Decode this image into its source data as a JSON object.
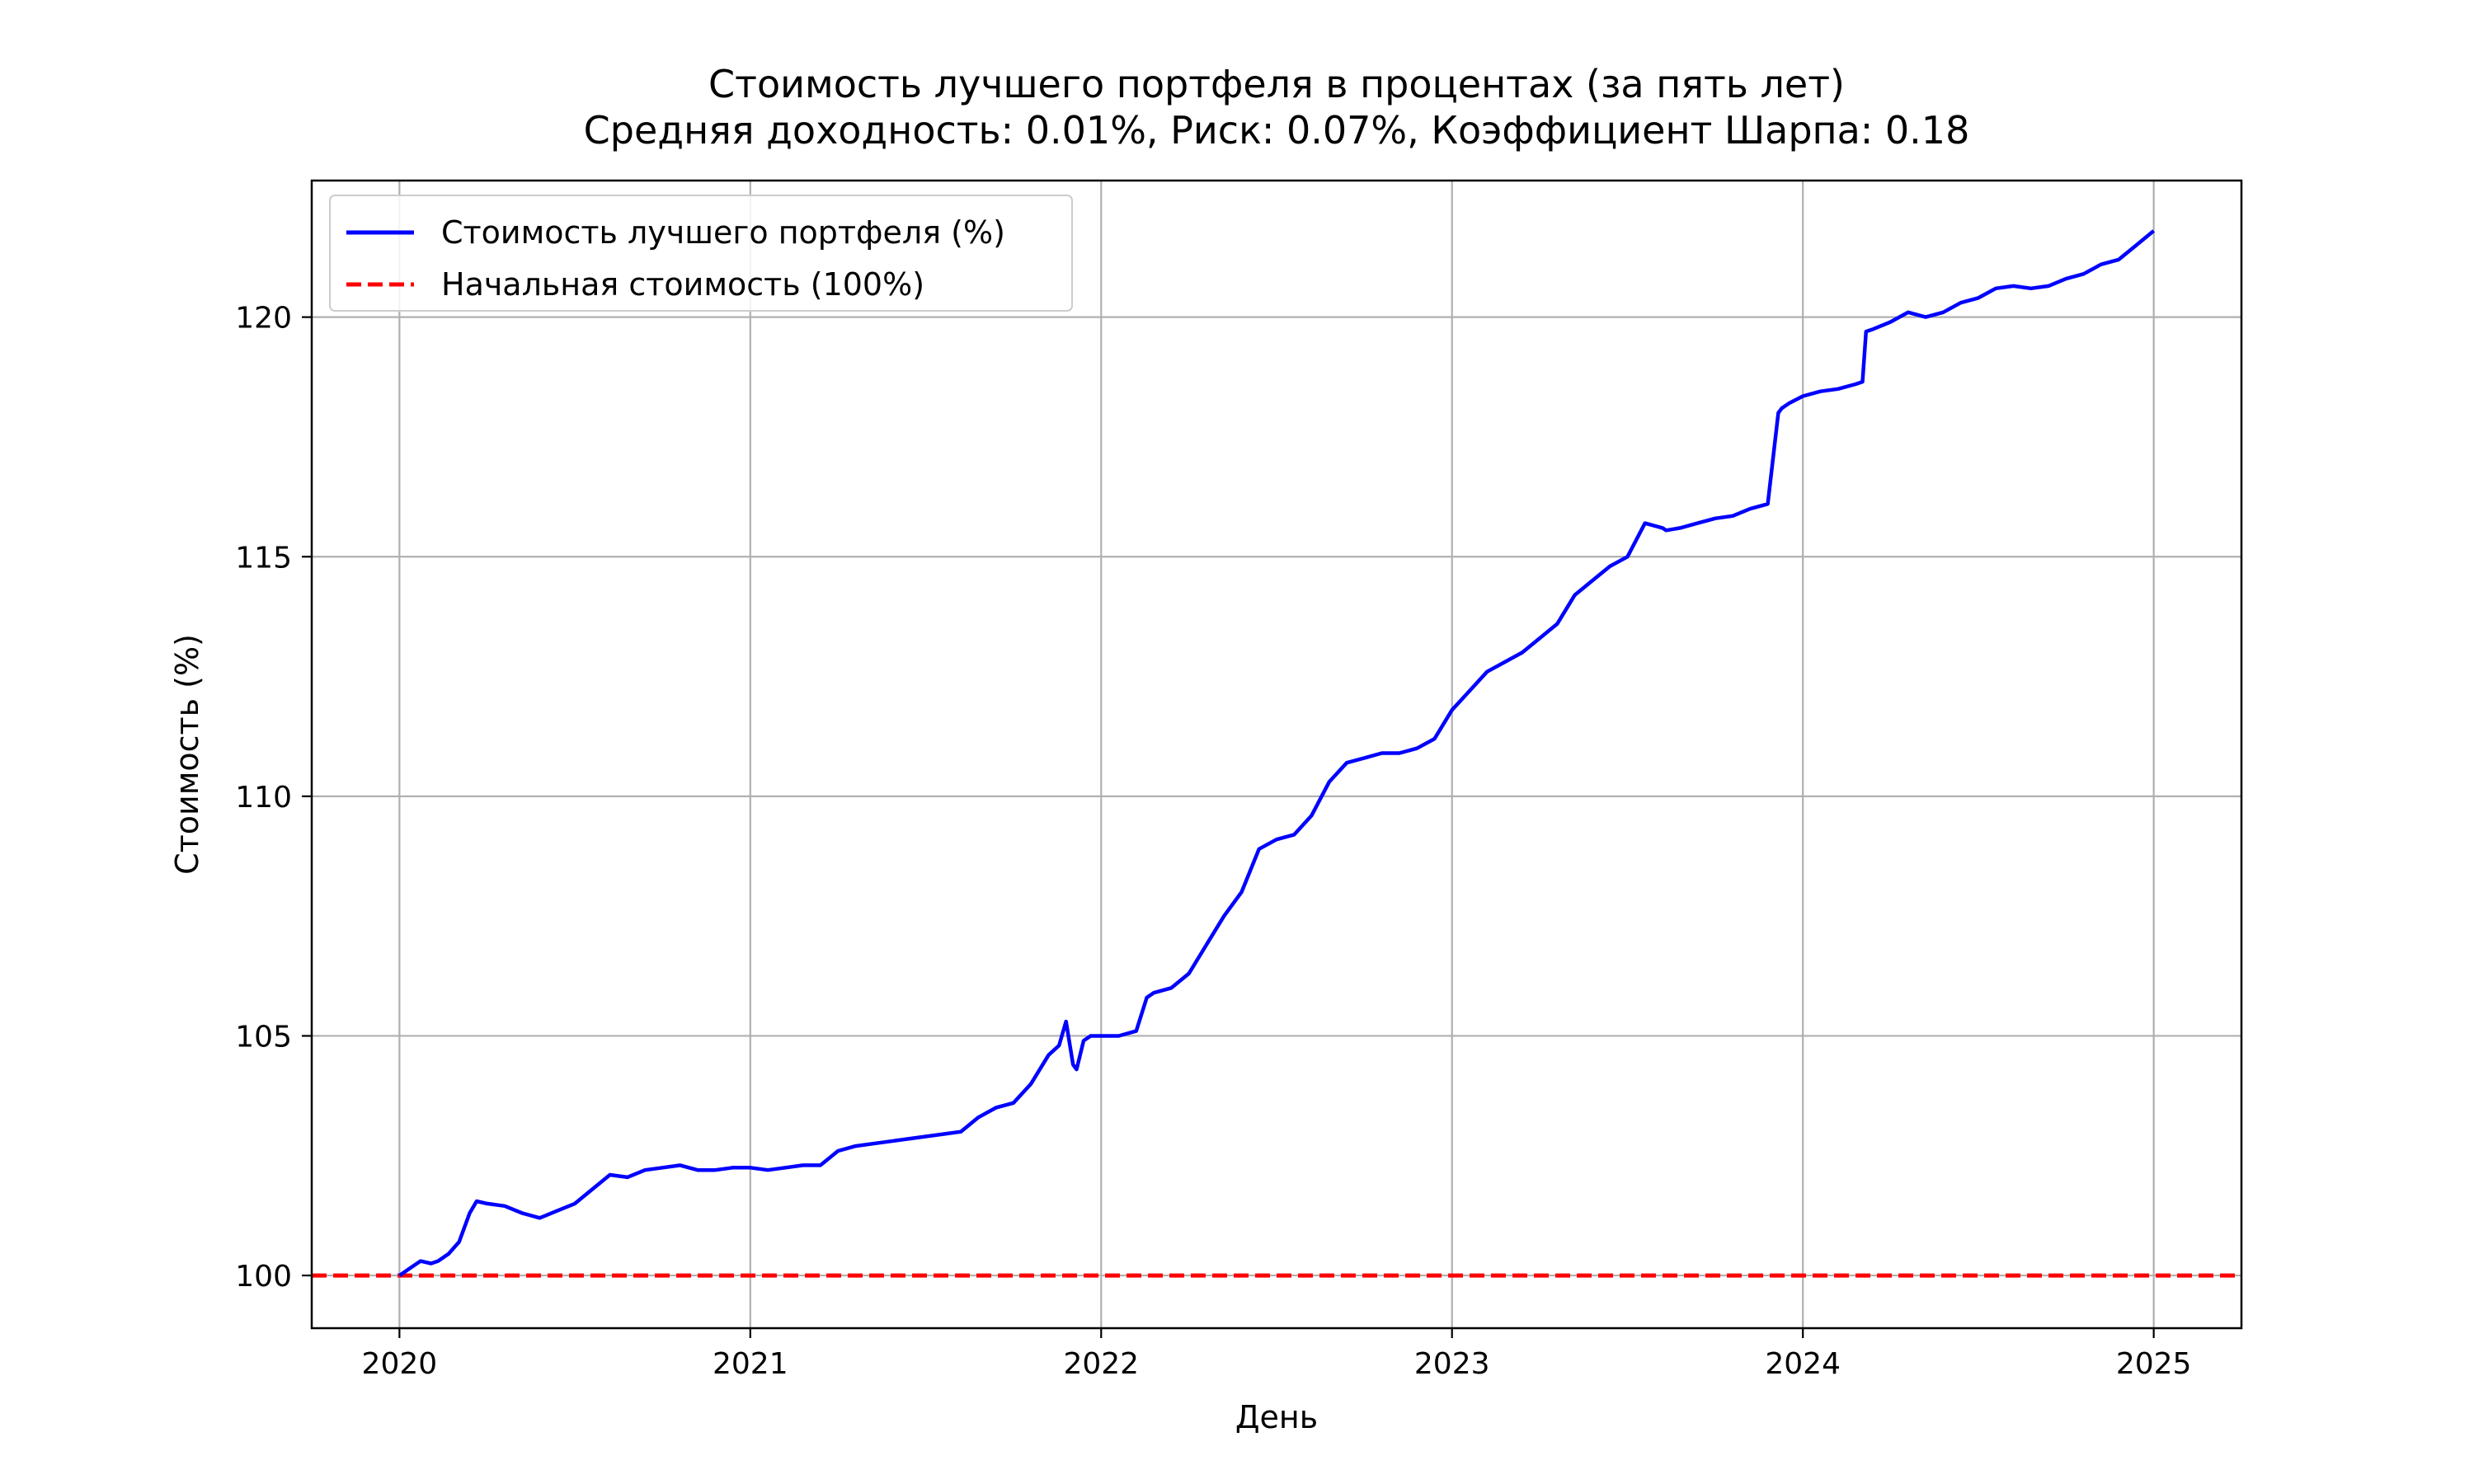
{
  "chart_data": {
    "type": "line",
    "title": "Стоимость лучшего портфеля в процентах (за пять лет)",
    "subtitle": "Средняя доходность: 0.01%, Риск: 0.07%, Коэффициент Шарпа: 0.18",
    "xlabel": "День",
    "ylabel": "Стоимость (%)",
    "xlim": [
      2019.75,
      2025.25
    ],
    "ylim": [
      98.9,
      122.85
    ],
    "x_ticks": [
      "2020",
      "2021",
      "2022",
      "2023",
      "2024",
      "2025"
    ],
    "y_ticks": [
      "100",
      "105",
      "110",
      "115",
      "120"
    ],
    "grid": true,
    "legend_position": "top-left",
    "series": [
      {
        "name": "Стоимость лучшего портфеля (%)",
        "color": "#0000ff",
        "style": "solid",
        "x": [
          2020.0,
          2020.03,
          2020.06,
          2020.09,
          2020.11,
          2020.14,
          2020.17,
          2020.2,
          2020.22,
          2020.25,
          2020.3,
          2020.35,
          2020.4,
          2020.45,
          2020.5,
          2020.55,
          2020.6,
          2020.65,
          2020.7,
          2020.75,
          2020.8,
          2020.85,
          2020.9,
          2020.95,
          2021.0,
          2021.05,
          2021.1,
          2021.15,
          2021.2,
          2021.25,
          2021.3,
          2021.35,
          2021.4,
          2021.45,
          2021.5,
          2021.55,
          2021.6,
          2021.65,
          2021.7,
          2021.75,
          2021.8,
          2021.85,
          2021.88,
          2021.9,
          2021.92,
          2021.93,
          2021.95,
          2021.97,
          2022.0,
          2022.05,
          2022.1,
          2022.13,
          2022.15,
          2022.2,
          2022.25,
          2022.3,
          2022.35,
          2022.4,
          2022.45,
          2022.5,
          2022.55,
          2022.6,
          2022.65,
          2022.7,
          2022.75,
          2022.8,
          2022.85,
          2022.9,
          2022.95,
          2023.0,
          2023.05,
          2023.1,
          2023.15,
          2023.2,
          2023.25,
          2023.3,
          2023.35,
          2023.4,
          2023.45,
          2023.5,
          2023.55,
          2023.6,
          2023.61,
          2023.65,
          2023.7,
          2023.75,
          2023.8,
          2023.85,
          2023.9,
          2023.93,
          2023.94,
          2023.96,
          2024.0,
          2024.05,
          2024.1,
          2024.15,
          2024.17,
          2024.18,
          2024.2,
          2024.25,
          2024.3,
          2024.35,
          2024.4,
          2024.45,
          2024.5,
          2024.55,
          2024.6,
          2024.65,
          2024.7,
          2024.75,
          2024.8,
          2024.85,
          2024.9,
          2024.95,
          2025.0
        ],
        "y": [
          100.0,
          100.15,
          100.3,
          100.25,
          100.3,
          100.45,
          100.7,
          101.3,
          101.55,
          101.5,
          101.45,
          101.3,
          101.2,
          101.35,
          101.5,
          101.8,
          102.1,
          102.05,
          102.2,
          102.25,
          102.3,
          102.2,
          102.2,
          102.25,
          102.25,
          102.2,
          102.25,
          102.3,
          102.3,
          102.6,
          102.7,
          102.75,
          102.8,
          102.85,
          102.9,
          102.95,
          103.0,
          103.3,
          103.5,
          103.6,
          104.0,
          104.6,
          104.8,
          105.3,
          104.4,
          104.3,
          104.9,
          105.0,
          105.0,
          105.0,
          105.1,
          105.8,
          105.9,
          106.0,
          106.3,
          106.9,
          107.5,
          108.0,
          108.9,
          109.1,
          109.2,
          109.6,
          110.3,
          110.7,
          110.8,
          110.9,
          110.9,
          111.0,
          111.2,
          111.8,
          112.2,
          112.6,
          112.8,
          113.0,
          113.3,
          113.6,
          114.2,
          114.5,
          114.8,
          115.0,
          115.7,
          115.6,
          115.55,
          115.6,
          115.7,
          115.8,
          115.85,
          116.0,
          116.1,
          118.0,
          118.1,
          118.2,
          118.35,
          118.45,
          118.5,
          118.6,
          118.65,
          119.7,
          119.75,
          119.9,
          120.1,
          120.0,
          120.1,
          120.3,
          120.4,
          120.6,
          120.65,
          120.6,
          120.65,
          120.8,
          120.9,
          121.1,
          121.2,
          121.5,
          121.8
        ]
      },
      {
        "name": "Начальная стоимость (100%)",
        "color": "#ff0000",
        "style": "dashed",
        "x": [
          2019.75,
          2025.25
        ],
        "y": [
          100,
          100
        ]
      }
    ]
  }
}
